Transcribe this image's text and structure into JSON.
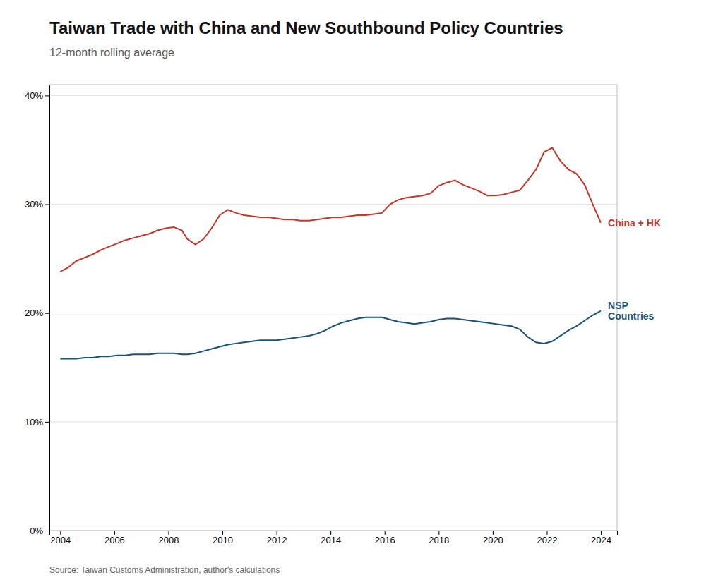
{
  "chart_data": {
    "type": "line",
    "title": "Taiwan Trade with China and New Southbound Policy Countries",
    "subtitle": "12-month rolling average",
    "source": "Source: Taiwan Customs Administration, author's calculations",
    "x": [
      2004.0,
      2004.3,
      2004.6,
      2004.9,
      2005.2,
      2005.5,
      2005.8,
      2006.1,
      2006.4,
      2006.7,
      2007.0,
      2007.3,
      2007.6,
      2007.9,
      2008.2,
      2008.5,
      2008.7,
      2009.0,
      2009.3,
      2009.6,
      2009.9,
      2010.2,
      2010.5,
      2010.8,
      2011.1,
      2011.4,
      2011.7,
      2012.0,
      2012.3,
      2012.6,
      2012.9,
      2013.2,
      2013.5,
      2013.8,
      2014.1,
      2014.4,
      2014.7,
      2015.0,
      2015.3,
      2015.6,
      2015.9,
      2016.2,
      2016.5,
      2016.8,
      2017.1,
      2017.4,
      2017.7,
      2018.0,
      2018.3,
      2018.6,
      2018.9,
      2019.2,
      2019.5,
      2019.8,
      2020.1,
      2020.4,
      2020.7,
      2021.0,
      2021.3,
      2021.6,
      2021.9,
      2022.2,
      2022.5,
      2022.8,
      2023.1,
      2023.4,
      2023.7,
      2024.0
    ],
    "series": [
      {
        "name": "China + HK",
        "color": "#c0392b",
        "values": [
          0.238,
          0.242,
          0.248,
          0.251,
          0.254,
          0.258,
          0.261,
          0.264,
          0.267,
          0.269,
          0.271,
          0.273,
          0.276,
          0.278,
          0.279,
          0.276,
          0.268,
          0.263,
          0.268,
          0.278,
          0.29,
          0.295,
          0.292,
          0.29,
          0.289,
          0.288,
          0.288,
          0.287,
          0.286,
          0.286,
          0.285,
          0.285,
          0.286,
          0.287,
          0.288,
          0.288,
          0.289,
          0.29,
          0.29,
          0.291,
          0.292,
          0.3,
          0.304,
          0.306,
          0.307,
          0.308,
          0.31,
          0.317,
          0.32,
          0.322,
          0.318,
          0.315,
          0.312,
          0.308,
          0.308,
          0.309,
          0.311,
          0.313,
          0.322,
          0.332,
          0.348,
          0.352,
          0.34,
          0.332,
          0.328,
          0.318,
          0.3,
          0.283
        ]
      },
      {
        "name": "NSP\nCountries",
        "color": "#1a5276",
        "values": [
          0.158,
          0.158,
          0.158,
          0.159,
          0.159,
          0.16,
          0.16,
          0.161,
          0.161,
          0.162,
          0.162,
          0.162,
          0.163,
          0.163,
          0.163,
          0.162,
          0.162,
          0.163,
          0.165,
          0.167,
          0.169,
          0.171,
          0.172,
          0.173,
          0.174,
          0.175,
          0.175,
          0.175,
          0.176,
          0.177,
          0.178,
          0.179,
          0.181,
          0.184,
          0.188,
          0.191,
          0.193,
          0.195,
          0.196,
          0.196,
          0.196,
          0.194,
          0.192,
          0.191,
          0.19,
          0.191,
          0.192,
          0.194,
          0.195,
          0.195,
          0.194,
          0.193,
          0.192,
          0.191,
          0.19,
          0.189,
          0.188,
          0.185,
          0.178,
          0.173,
          0.172,
          0.174,
          0.179,
          0.184,
          0.188,
          0.193,
          0.198,
          0.202
        ]
      }
    ],
    "xlim": [
      2003.6,
      2024.6
    ],
    "xticks": [
      2004,
      2006,
      2008,
      2010,
      2012,
      2014,
      2016,
      2018,
      2020,
      2022,
      2024
    ],
    "ylim": [
      0,
      0.41
    ],
    "yticks": [
      {
        "value": 0.0,
        "label": "0%"
      },
      {
        "value": 0.1,
        "label": "10%"
      },
      {
        "value": 0.2,
        "label": "20%"
      },
      {
        "value": 0.3,
        "label": "30%"
      },
      {
        "value": 0.4,
        "label": "40%"
      }
    ],
    "grid": true
  }
}
